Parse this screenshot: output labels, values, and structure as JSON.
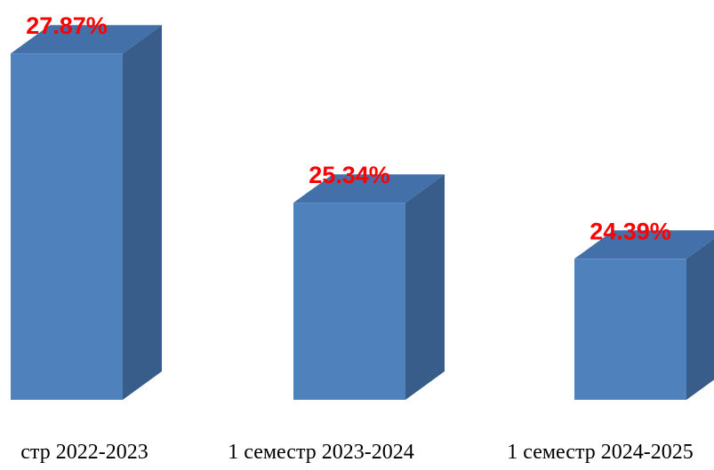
{
  "chart_data": {
    "type": "bar3d",
    "categories": [
      "стр 2022-2023",
      "1 семестр 2023-2024",
      "1 семестр 2024-2025"
    ],
    "values": [
      27.87,
      25.34,
      24.39
    ],
    "value_labels": [
      "27.87%",
      "25.34%",
      "24.39%"
    ],
    "color": "#4f81bd",
    "ylim": [
      22,
      28.5
    ]
  }
}
